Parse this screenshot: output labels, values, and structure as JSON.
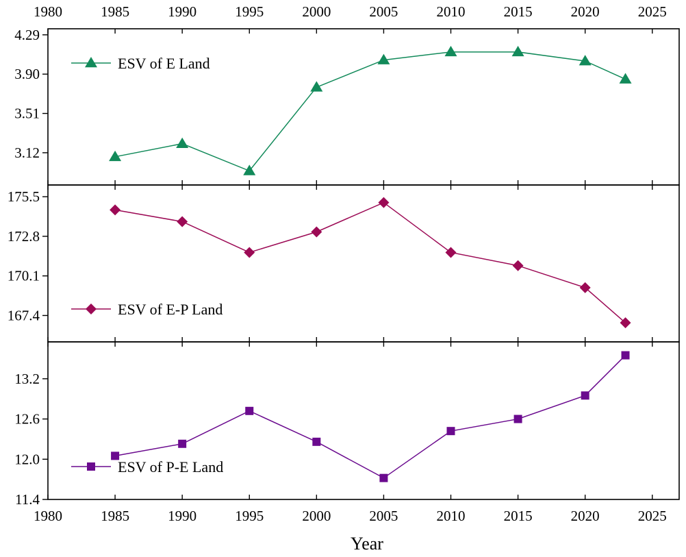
{
  "chart_data": {
    "type": "line",
    "xlabel": "Year",
    "xlim": [
      1980,
      2027
    ],
    "x_ticks": [
      "1980",
      "1985",
      "1990",
      "1995",
      "2000",
      "2005",
      "2010",
      "2015",
      "2020",
      "2025"
    ],
    "x": [
      1985,
      1990,
      1995,
      2000,
      2005,
      2010,
      2015,
      2020,
      2023
    ],
    "panels": [
      {
        "name": "ESV of E Land",
        "color": "#128a5a",
        "marker": "triangle",
        "ylim": [
          2.8,
          4.35
        ],
        "y_ticks": [
          "3.12",
          "3.51",
          "3.90",
          "4.29"
        ],
        "values": [
          3.08,
          3.21,
          2.94,
          3.77,
          4.04,
          4.12,
          4.12,
          4.03,
          3.85
        ],
        "legend_position": "top-left"
      },
      {
        "name": "ESV of E-P Land",
        "color": "#9c0a55",
        "marker": "diamond",
        "ylim": [
          165.6,
          176.3
        ],
        "y_ticks": [
          "167.4",
          "170.1",
          "172.8",
          "175.5"
        ],
        "values": [
          174.6,
          173.8,
          171.7,
          173.1,
          175.1,
          171.7,
          170.8,
          169.3,
          166.9
        ],
        "legend_position": "bottom-left"
      },
      {
        "name": "ESV of P-E Land",
        "color": "#6a0a8e",
        "marker": "square",
        "ylim": [
          11.4,
          13.75
        ],
        "y_ticks": [
          "11.4",
          "12.0",
          "12.6",
          "13.2"
        ],
        "values": [
          12.05,
          12.23,
          12.72,
          12.26,
          11.72,
          12.42,
          12.6,
          12.95,
          13.55
        ],
        "legend_position": "bottom-left"
      }
    ]
  }
}
